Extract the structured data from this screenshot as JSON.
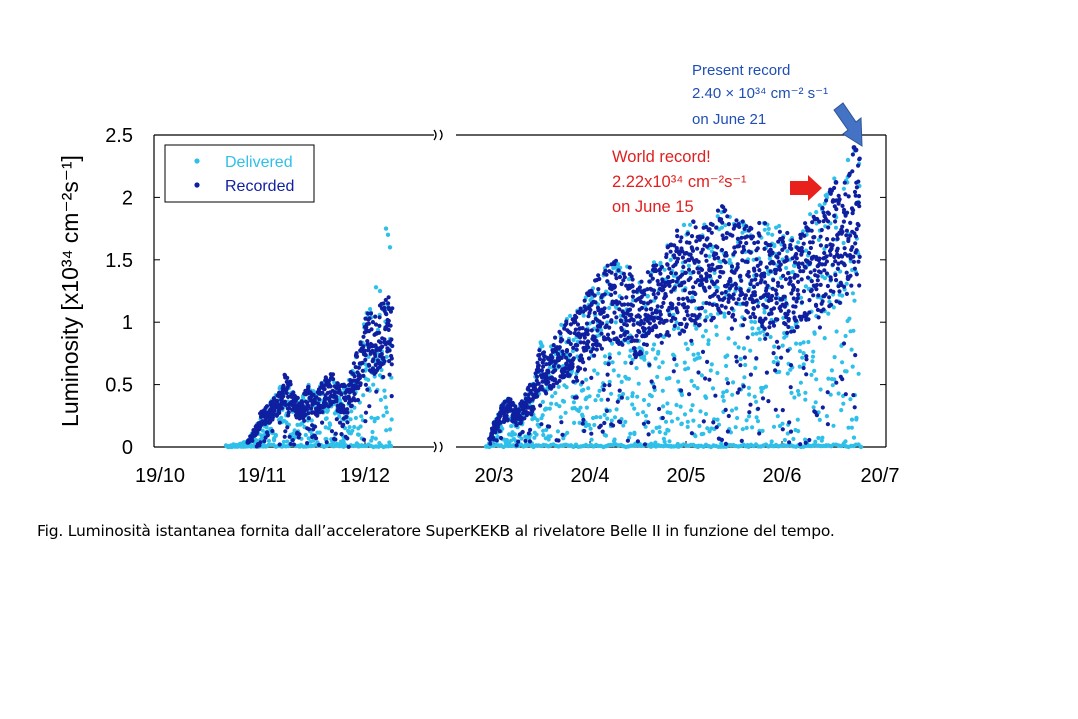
{
  "chart_data": {
    "type": "scatter",
    "ylabel": "Luminosity [x10³⁴ cm⁻²s⁻¹]",
    "ylim": [
      0,
      2.5
    ],
    "yticks": [
      "0",
      "0.5",
      "1",
      "1.5",
      "2",
      "2.5"
    ],
    "xticks": [
      "19/10",
      "19/11",
      "19/12",
      "20/3",
      "20/4",
      "20/5",
      "20/6",
      "20/7"
    ],
    "axis_break": "between 19/12 and 20/3",
    "series": [
      {
        "name": "Delivered",
        "color": "#2fc0ea"
      },
      {
        "name": "Recorded",
        "color": "#0f1fa0"
      }
    ],
    "periods": [
      {
        "start": "19/10",
        "end": "19/12",
        "peak_delivered": 1.75,
        "peak_recorded": 1.2
      },
      {
        "start": "20/3",
        "end": "20/7",
        "peak_delivered": 2.4,
        "peak_recorded": 2.4
      }
    ]
  },
  "legend": {
    "delivered": "Delivered",
    "recorded": "Recorded"
  },
  "annotations": {
    "world_record": {
      "line1": "World record!",
      "line2": "2.22x10³⁴ cm⁻²s⁻¹",
      "line3": "on June 15",
      "color": "#e02020"
    },
    "present_record": {
      "line1": "Present record",
      "line2": "2.40 × 10³⁴ cm⁻² s⁻¹",
      "line3": "on June 21",
      "color": "#1f4fb5"
    }
  },
  "caption": "Fig. Luminosità istantanea fornita dall’acceleratore SuperKEKB al rivelatore Belle II in funzione del tempo."
}
